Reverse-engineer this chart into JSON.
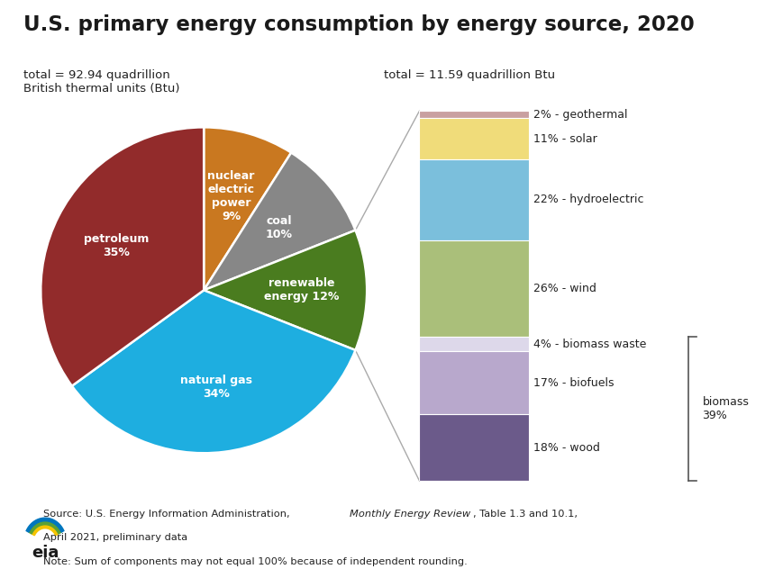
{
  "title": "U.S. primary energy consumption by energy source, 2020",
  "subtitle_left": "total = 92.94 quadrillion\nBritish thermal units (Btu)",
  "subtitle_right": "total = 11.59 quadrillion Btu",
  "pie_labels": [
    "petroleum\n35%",
    "natural gas\n34%",
    "renewable\nenergy 12%",
    "coal\n10%",
    "nuclear\nelectric\npower\n9%"
  ],
  "pie_values": [
    35,
    34,
    12,
    10,
    9
  ],
  "pie_colors": [
    "#922B2B",
    "#1EAEE0",
    "#4A7C1F",
    "#878787",
    "#C97820"
  ],
  "bar_labels": [
    "2% - geothermal",
    "11% - solar",
    "22% - hydroelectric",
    "26% - wind",
    "4% - biomass waste",
    "17% - biofuels",
    "18% - wood"
  ],
  "bar_values": [
    2,
    11,
    22,
    26,
    4,
    17,
    18
  ],
  "bar_colors": [
    "#C9A0A0",
    "#F0DC7A",
    "#7BBFDC",
    "#AABF7A",
    "#DDD8EA",
    "#B8A8CC",
    "#6B5A8A"
  ],
  "biomass_label": "biomass\n39%",
  "bg_color": "#FFFFFF",
  "source_line1_plain": "Source: U.S. Energy Information Administration, ",
  "source_line1_italic": "Monthly Energy Review",
  "source_line1_end": ", Table 1.3 and 10.1,",
  "source_line2": "April 2021, preliminary data",
  "source_line3": "Note: Sum of components may not equal 100% because of independent rounding."
}
